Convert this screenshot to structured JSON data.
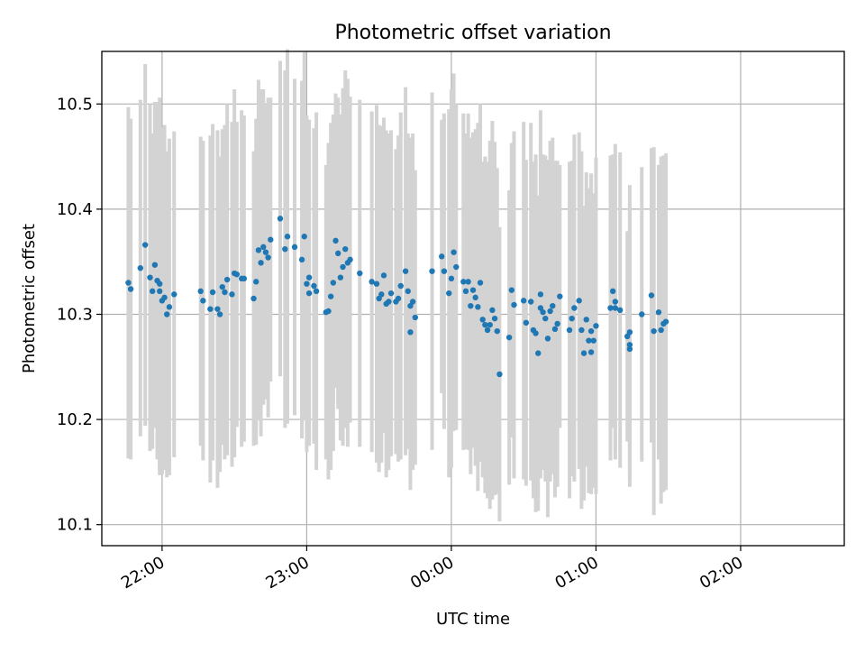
{
  "chart_data": {
    "type": "scatter",
    "title": "Photometric offset variation",
    "xlabel": "UTC time",
    "ylabel": "Photometric offset",
    "x_ticks": [
      "22:00",
      "23:00",
      "00:00",
      "01:00",
      "02:00"
    ],
    "y_ticks": [
      "10.1",
      "10.2",
      "10.3",
      "10.4",
      "10.5"
    ],
    "xlim": [
      "21:35",
      "02:43"
    ],
    "ylim": [
      10.08,
      10.55
    ],
    "grid": true,
    "series": [
      {
        "color": "#1f77b4",
        "errorbar_color": "#d3d3d3",
        "points": [
          {
            "t": "21:46",
            "y": 10.33,
            "err": 0.167
          },
          {
            "t": "21:47",
            "y": 10.324,
            "err": 0.162
          },
          {
            "t": "21:51",
            "y": 10.344,
            "err": 0.16
          },
          {
            "t": "21:53",
            "y": 10.366,
            "err": 0.172
          },
          {
            "t": "21:55",
            "y": 10.335,
            "err": 0.165
          },
          {
            "t": "21:56",
            "y": 10.322,
            "err": 0.15
          },
          {
            "t": "21:57",
            "y": 10.347,
            "err": 0.155
          },
          {
            "t": "21:58",
            "y": 10.332,
            "err": 0.17
          },
          {
            "t": "21:59",
            "y": 10.322,
            "err": 0.175
          },
          {
            "t": "21:59",
            "y": 10.329,
            "err": 0.177
          },
          {
            "t": "22:00",
            "y": 10.313,
            "err": 0.165
          },
          {
            "t": "22:01",
            "y": 10.316,
            "err": 0.164
          },
          {
            "t": "22:02",
            "y": 10.3,
            "err": 0.155
          },
          {
            "t": "22:03",
            "y": 10.307,
            "err": 0.16
          },
          {
            "t": "22:05",
            "y": 10.319,
            "err": 0.155
          },
          {
            "t": "22:16",
            "y": 10.322,
            "err": 0.147
          },
          {
            "t": "22:17",
            "y": 10.313,
            "err": 0.152
          },
          {
            "t": "22:20",
            "y": 10.305,
            "err": 0.165
          },
          {
            "t": "22:21",
            "y": 10.321,
            "err": 0.16
          },
          {
            "t": "22:23",
            "y": 10.305,
            "err": 0.17
          },
          {
            "t": "22:24",
            "y": 10.3,
            "err": 0.15
          },
          {
            "t": "22:25",
            "y": 10.326,
            "err": 0.15
          },
          {
            "t": "22:26",
            "y": 10.321,
            "err": 0.159
          },
          {
            "t": "22:27",
            "y": 10.333,
            "err": 0.167
          },
          {
            "t": "22:29",
            "y": 10.319,
            "err": 0.164
          },
          {
            "t": "22:30",
            "y": 10.339,
            "err": 0.175
          },
          {
            "t": "22:31",
            "y": 10.338,
            "err": 0.145
          },
          {
            "t": "22:33",
            "y": 10.334,
            "err": 0.16
          },
          {
            "t": "22:34",
            "y": 10.334,
            "err": 0.155
          },
          {
            "t": "22:38",
            "y": 10.315,
            "err": 0.14
          },
          {
            "t": "22:39",
            "y": 10.331,
            "err": 0.155
          },
          {
            "t": "22:40",
            "y": 10.361,
            "err": 0.162
          },
          {
            "t": "22:41",
            "y": 10.349,
            "err": 0.165
          },
          {
            "t": "22:42",
            "y": 10.364,
            "err": 0.15
          },
          {
            "t": "22:43",
            "y": 10.359,
            "err": 0.14
          },
          {
            "t": "22:44",
            "y": 10.354,
            "err": 0.152
          },
          {
            "t": "22:45",
            "y": 10.371,
            "err": 0.135
          },
          {
            "t": "22:49",
            "y": 10.391,
            "err": 0.15
          },
          {
            "t": "22:51",
            "y": 10.362,
            "err": 0.17
          },
          {
            "t": "22:52",
            "y": 10.374,
            "err": 0.178
          },
          {
            "t": "22:55",
            "y": 10.364,
            "err": 0.16
          },
          {
            "t": "22:58",
            "y": 10.352,
            "err": 0.17
          },
          {
            "t": "22:59",
            "y": 10.374,
            "err": 0.175
          },
          {
            "t": "23:00",
            "y": 10.329,
            "err": 0.16
          },
          {
            "t": "23:01",
            "y": 10.32,
            "err": 0.145
          },
          {
            "t": "23:01",
            "y": 10.335,
            "err": 0.15
          },
          {
            "t": "23:03",
            "y": 10.327,
            "err": 0.15
          },
          {
            "t": "23:04",
            "y": 10.322,
            "err": 0.17
          },
          {
            "t": "23:08",
            "y": 10.302,
            "err": 0.14
          },
          {
            "t": "23:09",
            "y": 10.303,
            "err": 0.16
          },
          {
            "t": "23:10",
            "y": 10.317,
            "err": 0.165
          },
          {
            "t": "23:11",
            "y": 10.33,
            "err": 0.16
          },
          {
            "t": "23:12",
            "y": 10.37,
            "err": 0.14
          },
          {
            "t": "23:13",
            "y": 10.358,
            "err": 0.148
          },
          {
            "t": "23:14",
            "y": 10.335,
            "err": 0.155
          },
          {
            "t": "23:15",
            "y": 10.345,
            "err": 0.17
          },
          {
            "t": "23:16",
            "y": 10.362,
            "err": 0.17
          },
          {
            "t": "23:17",
            "y": 10.349,
            "err": 0.175
          },
          {
            "t": "23:18",
            "y": 10.352,
            "err": 0.155
          },
          {
            "t": "23:22",
            "y": 10.339,
            "err": 0.165
          },
          {
            "t": "23:27",
            "y": 10.331,
            "err": 0.162
          },
          {
            "t": "23:29",
            "y": 10.329,
            "err": 0.17
          },
          {
            "t": "23:30",
            "y": 10.315,
            "err": 0.165
          },
          {
            "t": "23:31",
            "y": 10.319,
            "err": 0.16
          },
          {
            "t": "23:32",
            "y": 10.337,
            "err": 0.15
          },
          {
            "t": "23:33",
            "y": 10.31,
            "err": 0.165
          },
          {
            "t": "23:34",
            "y": 10.312,
            "err": 0.16
          },
          {
            "t": "23:35",
            "y": 10.32,
            "err": 0.155
          },
          {
            "t": "23:37",
            "y": 10.312,
            "err": 0.145
          },
          {
            "t": "23:38",
            "y": 10.315,
            "err": 0.155
          },
          {
            "t": "23:39",
            "y": 10.327,
            "err": 0.165
          },
          {
            "t": "23:41",
            "y": 10.341,
            "err": 0.175
          },
          {
            "t": "23:42",
            "y": 10.322,
            "err": 0.15
          },
          {
            "t": "23:43",
            "y": 10.308,
            "err": 0.16
          },
          {
            "t": "23:43",
            "y": 10.283,
            "err": 0.15
          },
          {
            "t": "23:44",
            "y": 10.312,
            "err": 0.16
          },
          {
            "t": "23:45",
            "y": 10.297,
            "err": 0.14
          },
          {
            "t": "23:52",
            "y": 10.341,
            "err": 0.17
          },
          {
            "t": "23:56",
            "y": 10.355,
            "err": 0.13
          },
          {
            "t": "23:57",
            "y": 10.341,
            "err": 0.15
          },
          {
            "t": "23:59",
            "y": 10.32,
            "err": 0.175
          },
          {
            "t": "00:00",
            "y": 10.334,
            "err": 0.18
          },
          {
            "t": "00:01",
            "y": 10.359,
            "err": 0.17
          },
          {
            "t": "00:02",
            "y": 10.345,
            "err": 0.155
          },
          {
            "t": "00:05",
            "y": 10.331,
            "err": 0.16
          },
          {
            "t": "00:06",
            "y": 10.322,
            "err": 0.15
          },
          {
            "t": "00:07",
            "y": 10.331,
            "err": 0.16
          },
          {
            "t": "00:08",
            "y": 10.308,
            "err": 0.16
          },
          {
            "t": "00:09",
            "y": 10.323,
            "err": 0.15
          },
          {
            "t": "00:10",
            "y": 10.316,
            "err": 0.16
          },
          {
            "t": "00:11",
            "y": 10.307,
            "err": 0.175
          },
          {
            "t": "00:12",
            "y": 10.33,
            "err": 0.17
          },
          {
            "t": "00:13",
            "y": 10.295,
            "err": 0.15
          },
          {
            "t": "00:14",
            "y": 10.29,
            "err": 0.16
          },
          {
            "t": "00:15",
            "y": 10.285,
            "err": 0.16
          },
          {
            "t": "00:16",
            "y": 10.29,
            "err": 0.175
          },
          {
            "t": "00:17",
            "y": 10.304,
            "err": 0.18
          },
          {
            "t": "00:18",
            "y": 10.296,
            "err": 0.168
          },
          {
            "t": "00:19",
            "y": 10.284,
            "err": 0.155
          },
          {
            "t": "00:20",
            "y": 10.243,
            "err": 0.14
          },
          {
            "t": "00:24",
            "y": 10.278,
            "err": 0.14
          },
          {
            "t": "00:25",
            "y": 10.323,
            "err": 0.14
          },
          {
            "t": "00:26",
            "y": 10.309,
            "err": 0.165
          },
          {
            "t": "00:30",
            "y": 10.313,
            "err": 0.17
          },
          {
            "t": "00:31",
            "y": 10.292,
            "err": 0.155
          },
          {
            "t": "00:33",
            "y": 10.312,
            "err": 0.17
          },
          {
            "t": "00:34",
            "y": 10.285,
            "err": 0.16
          },
          {
            "t": "00:35",
            "y": 10.282,
            "err": 0.17
          },
          {
            "t": "00:36",
            "y": 10.263,
            "err": 0.15
          },
          {
            "t": "00:37",
            "y": 10.306,
            "err": 0.16
          },
          {
            "t": "00:37",
            "y": 10.319,
            "err": 0.175
          },
          {
            "t": "00:38",
            "y": 10.302,
            "err": 0.15
          },
          {
            "t": "00:39",
            "y": 10.296,
            "err": 0.155
          },
          {
            "t": "00:40",
            "y": 10.277,
            "err": 0.17
          },
          {
            "t": "00:41",
            "y": 10.303,
            "err": 0.162
          },
          {
            "t": "00:42",
            "y": 10.308,
            "err": 0.16
          },
          {
            "t": "00:43",
            "y": 10.286,
            "err": 0.16
          },
          {
            "t": "00:44",
            "y": 10.291,
            "err": 0.155
          },
          {
            "t": "00:45",
            "y": 10.317,
            "err": 0.125
          },
          {
            "t": "00:49",
            "y": 10.285,
            "err": 0.16
          },
          {
            "t": "00:50",
            "y": 10.296,
            "err": 0.15
          },
          {
            "t": "00:51",
            "y": 10.306,
            "err": 0.165
          },
          {
            "t": "00:53",
            "y": 10.313,
            "err": 0.16
          },
          {
            "t": "00:54",
            "y": 10.285,
            "err": 0.17
          },
          {
            "t": "00:55",
            "y": 10.263,
            "err": 0.14
          },
          {
            "t": "00:56",
            "y": 10.295,
            "err": 0.14
          },
          {
            "t": "00:57",
            "y": 10.275,
            "err": 0.145
          },
          {
            "t": "00:58",
            "y": 10.284,
            "err": 0.15
          },
          {
            "t": "00:58",
            "y": 10.264,
            "err": 0.135
          },
          {
            "t": "00:59",
            "y": 10.275,
            "err": 0.14
          },
          {
            "t": "01:00",
            "y": 10.289,
            "err": 0.16
          },
          {
            "t": "01:06",
            "y": 10.306,
            "err": 0.145
          },
          {
            "t": "01:07",
            "y": 10.322,
            "err": 0.13
          },
          {
            "t": "01:08",
            "y": 10.312,
            "err": 0.15
          },
          {
            "t": "01:08",
            "y": 10.306,
            "err": 0.135
          },
          {
            "t": "01:10",
            "y": 10.304,
            "err": 0.15
          },
          {
            "t": "01:13",
            "y": 10.279,
            "err": 0.1
          },
          {
            "t": "01:14",
            "y": 10.283,
            "err": 0.14
          },
          {
            "t": "01:14",
            "y": 10.267,
            "err": 0.11
          },
          {
            "t": "01:14",
            "y": 10.271,
            "err": 0.135
          },
          {
            "t": "01:19",
            "y": 10.3,
            "err": 0.14
          },
          {
            "t": "01:23",
            "y": 10.318,
            "err": 0.14
          },
          {
            "t": "01:24",
            "y": 10.284,
            "err": 0.175
          },
          {
            "t": "01:26",
            "y": 10.302,
            "err": 0.14
          },
          {
            "t": "01:27",
            "y": 10.285,
            "err": 0.165
          },
          {
            "t": "01:28",
            "y": 10.291,
            "err": 0.16
          },
          {
            "t": "01:29",
            "y": 10.293,
            "err": 0.16
          }
        ]
      }
    ]
  }
}
